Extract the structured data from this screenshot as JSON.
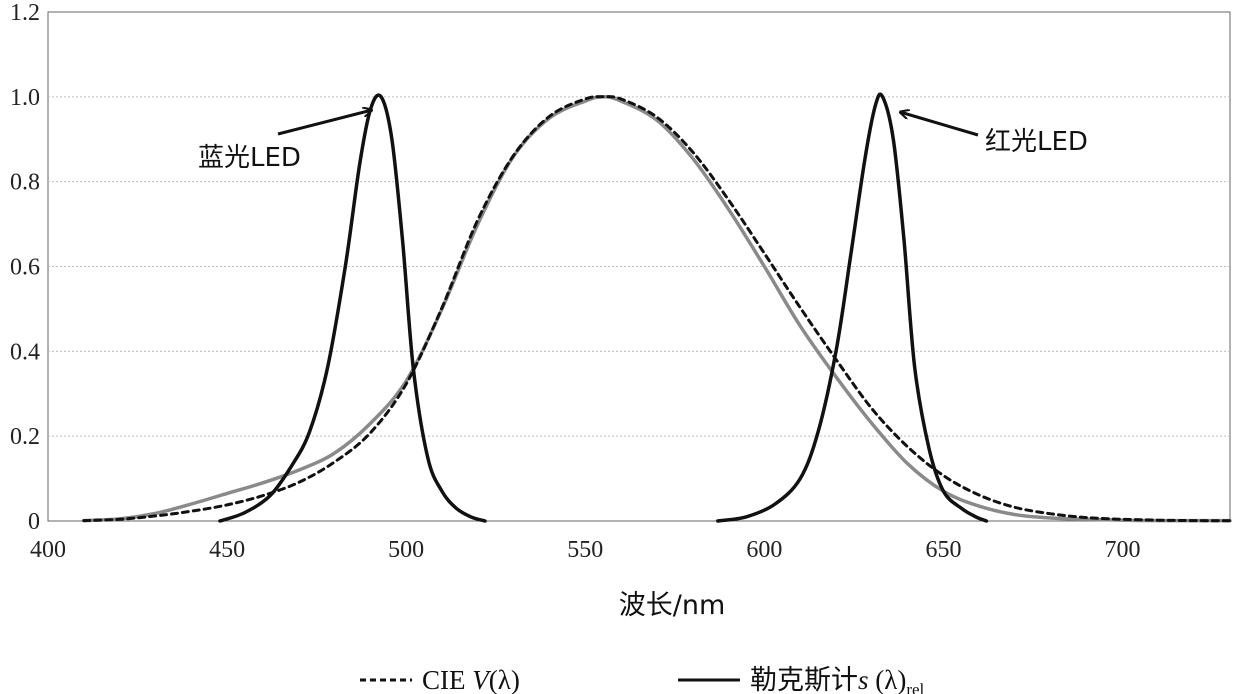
{
  "chart_data": {
    "type": "line",
    "xlabel": "波长/nm",
    "ylabel": "",
    "xlim": [
      400,
      730
    ],
    "ylim": [
      0,
      1.2
    ],
    "x_ticks": [
      "400",
      "450",
      "500",
      "550",
      "600",
      "650",
      "700"
    ],
    "y_ticks": [
      "0",
      "0.2",
      "0.4",
      "0.6",
      "0.8",
      "1.0",
      "1.2"
    ],
    "grid": "horizontal",
    "legend_position": "bottom",
    "annotations": [
      {
        "text": "蓝光LED",
        "points_to": [
          493,
          1.0
        ]
      },
      {
        "text": "红光LED",
        "points_to": [
          633,
          1.0
        ]
      }
    ],
    "legend": [
      {
        "style": "dashed",
        "label_prefix": "CIE ",
        "label_var": "V",
        "label_rest": "(λ)"
      },
      {
        "style": "solid",
        "label_prefix": "勒克斯计",
        "label_var": "s",
        "label_rest": " (λ)",
        "label_sub": "rel"
      }
    ],
    "series": [
      {
        "role": "CIE V(λ)",
        "style": "dashed",
        "color": "#111111",
        "x": [
          410,
          420,
          430,
          440,
          450,
          460,
          470,
          480,
          490,
          500,
          510,
          520,
          530,
          540,
          550,
          555,
          560,
          570,
          580,
          590,
          600,
          610,
          620,
          630,
          640,
          650,
          660,
          670,
          680,
          690,
          700,
          710,
          720,
          730
        ],
        "y": [
          0.001,
          0.004,
          0.012,
          0.023,
          0.038,
          0.06,
          0.091,
          0.139,
          0.208,
          0.323,
          0.503,
          0.71,
          0.862,
          0.954,
          0.995,
          1.0,
          0.995,
          0.952,
          0.87,
          0.757,
          0.631,
          0.503,
          0.381,
          0.265,
          0.175,
          0.107,
          0.061,
          0.032,
          0.017,
          0.008,
          0.004,
          0.002,
          0.001,
          0.0005
        ]
      },
      {
        "role": "勒克斯计 s(λ)rel",
        "style": "solid",
        "color": "#8a8a8a",
        "x": [
          410,
          420,
          430,
          440,
          450,
          460,
          470,
          480,
          490,
          500,
          510,
          520,
          530,
          540,
          550,
          555,
          560,
          570,
          580,
          590,
          600,
          610,
          620,
          630,
          640,
          650,
          660,
          670,
          680,
          690,
          700,
          710,
          720,
          730
        ],
        "y": [
          0.001,
          0.005,
          0.018,
          0.04,
          0.065,
          0.09,
          0.12,
          0.16,
          0.23,
          0.33,
          0.5,
          0.7,
          0.86,
          0.95,
          0.99,
          1.0,
          0.99,
          0.945,
          0.855,
          0.735,
          0.6,
          0.46,
          0.34,
          0.23,
          0.135,
          0.07,
          0.035,
          0.015,
          0.007,
          0.004,
          0.002,
          0.001,
          0.001,
          0.001
        ]
      },
      {
        "role": "蓝光LED",
        "style": "solid",
        "color": "#111111",
        "x": [
          448,
          455,
          462,
          468,
          473,
          478,
          483,
          487,
          490,
          493,
          496,
          499,
          502,
          506,
          510,
          514,
          518,
          522
        ],
        "y": [
          0.0,
          0.02,
          0.06,
          0.13,
          0.21,
          0.36,
          0.6,
          0.84,
          0.97,
          1.0,
          0.9,
          0.66,
          0.36,
          0.15,
          0.07,
          0.03,
          0.01,
          0.0
        ]
      },
      {
        "role": "红光LED",
        "style": "solid",
        "color": "#111111",
        "x": [
          587,
          595,
          603,
          610,
          615,
          620,
          624,
          628,
          631,
          633,
          636,
          639,
          642,
          646,
          650,
          655,
          659,
          662
        ],
        "y": [
          0.0,
          0.01,
          0.04,
          0.1,
          0.21,
          0.4,
          0.62,
          0.85,
          0.98,
          1.0,
          0.9,
          0.66,
          0.36,
          0.17,
          0.07,
          0.03,
          0.01,
          0.0
        ]
      }
    ]
  }
}
